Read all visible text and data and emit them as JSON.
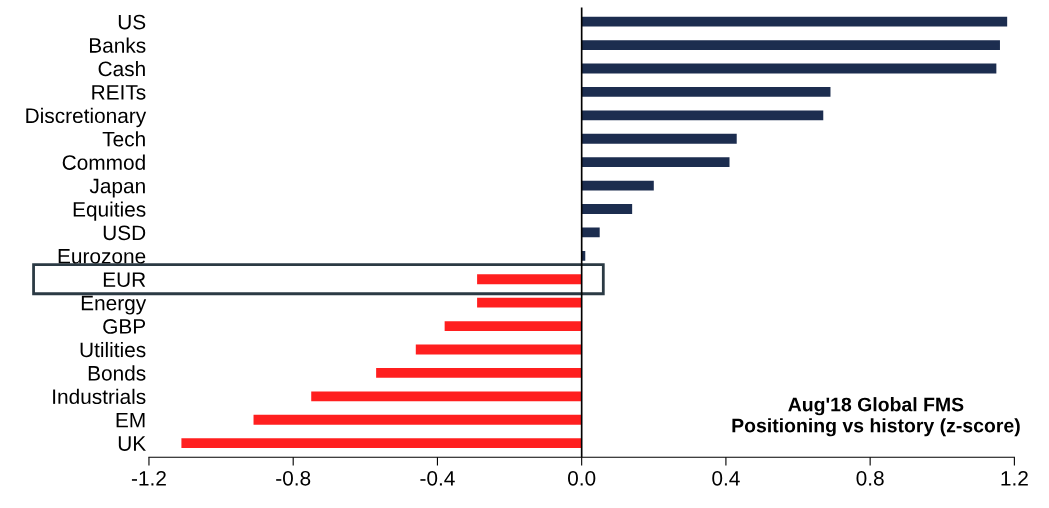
{
  "chart_data": {
    "type": "bar",
    "orientation": "horizontal",
    "categories": [
      "US",
      "Banks",
      "Cash",
      "REITs",
      "Discretionary",
      "Tech",
      "Commod",
      "Japan",
      "Equities",
      "USD",
      "Eurozone",
      "EUR",
      "Energy",
      "GBP",
      "Utilities",
      "Bonds",
      "Industrials",
      "EM",
      "UK"
    ],
    "values": [
      1.18,
      1.16,
      1.15,
      0.69,
      0.67,
      0.43,
      0.41,
      0.2,
      0.14,
      0.05,
      0.01,
      -0.29,
      -0.29,
      -0.38,
      -0.46,
      -0.57,
      -0.75,
      -0.91,
      -1.11
    ],
    "colors": [
      "#1c2d4f",
      "#1c2d4f",
      "#1c2d4f",
      "#1c2d4f",
      "#1c2d4f",
      "#1c2d4f",
      "#1c2d4f",
      "#1c2d4f",
      "#1c2d4f",
      "#1c2d4f",
      "#1c2d4f",
      "#ff1f1f",
      "#ff1f1f",
      "#ff1f1f",
      "#ff1f1f",
      "#ff1f1f",
      "#ff1f1f",
      "#ff1f1f",
      "#ff1f1f"
    ],
    "xlim": [
      -1.2,
      1.2
    ],
    "xticks": [
      {
        "value": -1.2,
        "label": "-1.2"
      },
      {
        "value": -0.8,
        "label": "-0.8"
      },
      {
        "value": -0.4,
        "label": "-0.4"
      },
      {
        "value": 0,
        "label": "0.0"
      },
      {
        "value": 0.4,
        "label": "0.4"
      },
      {
        "value": 0.8,
        "label": "0.8"
      },
      {
        "value": 1.2,
        "label": "1.2"
      }
    ],
    "ref_lines": [
      {
        "axis": "x",
        "value": 0,
        "color": "#000000"
      }
    ],
    "annotations": [
      "Aug'18 Global FMS\nPositioning vs history (z-score)"
    ],
    "grid": false,
    "legend": false
  }
}
